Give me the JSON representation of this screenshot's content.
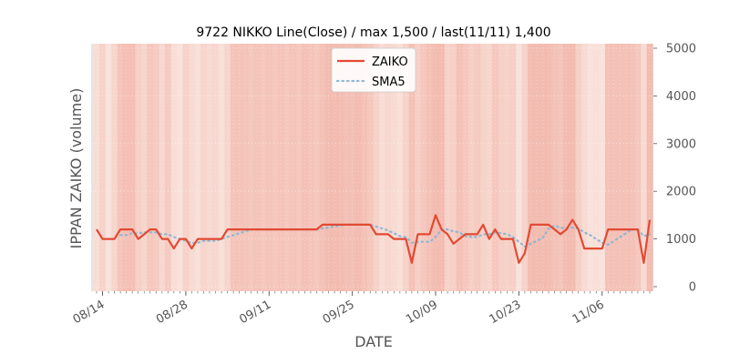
{
  "chart_data": {
    "type": "line",
    "title": "9722 NIKKO Line(Close) / max 1,500 / last(11/11) 1,400",
    "xlabel": "DATE",
    "ylabel": "IPPAN ZAIKO (volume)",
    "ylim": [
      0,
      5000
    ],
    "yticks": [
      0,
      1000,
      2000,
      3000,
      4000,
      5000
    ],
    "ytick_labels": [
      "0",
      "1000",
      "2000",
      "3000",
      "4000",
      "5000"
    ],
    "yaxis_side": "right",
    "xticks": [
      {
        "label": "08/14",
        "index": 1
      },
      {
        "label": "08/28",
        "index": 15
      },
      {
        "label": "09/11",
        "index": 29
      },
      {
        "label": "09/25",
        "index": 43
      },
      {
        "label": "10/09",
        "index": 57
      },
      {
        "label": "10/23",
        "index": 71
      },
      {
        "label": "11/06",
        "index": 85
      }
    ],
    "series": [
      {
        "name": "ZAIKO",
        "color": "#e24a33",
        "style": "solid",
        "values": [
          1200,
          1000,
          1000,
          1000,
          1200,
          1200,
          1200,
          1000,
          1100,
          1200,
          1200,
          1000,
          1000,
          800,
          1000,
          1000,
          800,
          1000,
          1000,
          1000,
          1000,
          1000,
          1200,
          1200,
          1200,
          1200,
          1200,
          1200,
          1200,
          1200,
          1200,
          1200,
          1200,
          1200,
          1200,
          1200,
          1200,
          1200,
          1300,
          1300,
          1300,
          1300,
          1300,
          1300,
          1300,
          1300,
          1300,
          1100,
          1100,
          1100,
          1000,
          1000,
          1000,
          500,
          1100,
          1100,
          1100,
          1500,
          1200,
          1100,
          900,
          1000,
          1100,
          1100,
          1100,
          1300,
          1000,
          1200,
          1000,
          1000,
          1000,
          500,
          700,
          1300,
          1300,
          1300,
          1300,
          1200,
          1100,
          1200,
          1400,
          1200,
          800,
          800,
          800,
          800,
          1200,
          1200,
          1200,
          1200,
          1200,
          1200,
          500,
          1400
        ]
      },
      {
        "name": "SMA5",
        "color": "#8eb8d6",
        "style": "dotted",
        "values": [
          null,
          null,
          null,
          null,
          1080,
          1080,
          1120,
          1120,
          1140,
          1140,
          1140,
          1100,
          1100,
          1040,
          1000,
          960,
          920,
          920,
          960,
          960,
          960,
          1000,
          1040,
          1080,
          1120,
          1160,
          1200,
          1200,
          1200,
          1200,
          1200,
          1200,
          1200,
          1200,
          1200,
          1200,
          1200,
          1200,
          1220,
          1240,
          1260,
          1280,
          1300,
          1300,
          1300,
          1300,
          1300,
          1260,
          1220,
          1180,
          1120,
          1060,
          1040,
          920,
          940,
          940,
          940,
          1040,
          1200,
          1200,
          1160,
          1140,
          1060,
          1040,
          1040,
          1100,
          1100,
          1140,
          1120,
          1100,
          1040,
          940,
          840,
          900,
          960,
          1020,
          1220,
          1280,
          1240,
          1220,
          1240,
          1220,
          1140,
          1080,
          1000,
          920,
          880,
          960,
          1040,
          1120,
          1200,
          1200,
          1060,
          1100
        ]
      }
    ],
    "background_bands": [
      0.35,
      0.55,
      0.25,
      0.5,
      0.8,
      0.9,
      0.9,
      0.6,
      0.5,
      0.75,
      0.7,
      0.45,
      0.7,
      0.35,
      0.25,
      0.55,
      0.4,
      0.3,
      0.5,
      0.4,
      0.45,
      0.3,
      0.5,
      0.8,
      0.8,
      0.8,
      0.75,
      0.8,
      0.75,
      0.8,
      0.75,
      0.8,
      0.75,
      0.8,
      0.75,
      0.85,
      0.8,
      0.75,
      0.85,
      0.95,
      0.95,
      0.95,
      0.9,
      0.9,
      0.95,
      0.85,
      0.75,
      0.55,
      0.35,
      0.45,
      0.4,
      0.3,
      0.55,
      0.85,
      0.6,
      0.75,
      0.85,
      0.95,
      0.95,
      0.55,
      0.6,
      0.85,
      0.75,
      0.6,
      0.7,
      0.55,
      0.5,
      0.75,
      0.6,
      0.55,
      0.6,
      0.25,
      0.55,
      0.95,
      0.95,
      0.95,
      0.95,
      0.85,
      0.8,
      0.95,
      0.95,
      0.6,
      0.4,
      0.25,
      0.3,
      0.25,
      0.85,
      0.85,
      0.85,
      0.85,
      0.85,
      0.75,
      0.4,
      0.95
    ],
    "legend": {
      "position": "top-center",
      "entries": [
        "ZAIKO",
        "SMA5"
      ]
    }
  }
}
